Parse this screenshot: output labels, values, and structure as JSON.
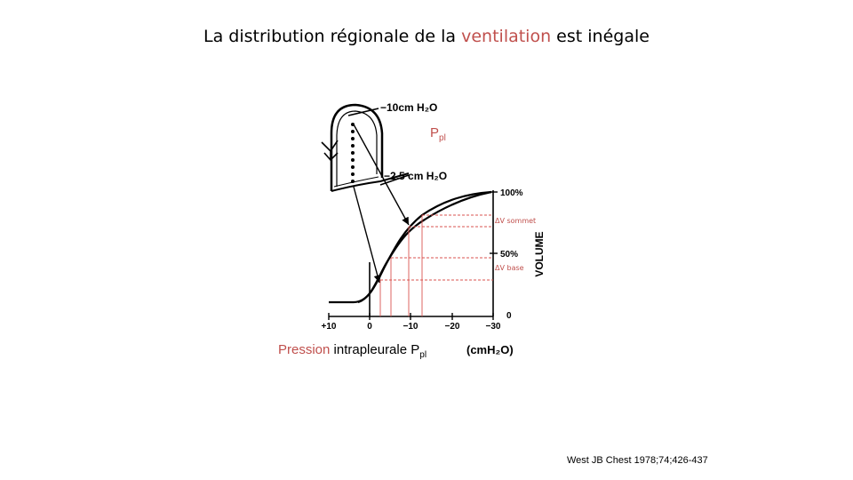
{
  "slide": {
    "title_part1": "La distribution régionale de la ",
    "title_accent": "ventilation",
    "title_part2": " est inégale",
    "citation": "West JB Chest 1978;74;426-437"
  },
  "figure": {
    "apex_pressure": "−10cm  H₂O",
    "base_pressure": "−2.5 cm H₂O",
    "ppl_label": "P",
    "ppl_sub": "pl",
    "delta_v_apex": "ΔV sommet",
    "delta_v_base": "ΔV base",
    "y_axis_label": "VOLUME",
    "y_ticks": [
      "100%",
      "50%",
      "0"
    ],
    "x_ticks": [
      "+10",
      "0",
      "−10",
      "−20",
      "−30"
    ],
    "x_label_accent": "Pression",
    "x_label_rest": " intrapleurale P",
    "x_label_sub": "pl",
    "x_unit": "(cmH₂O)"
  },
  "colors": {
    "accent": "#c0504d",
    "dashed": "#d9534f"
  }
}
